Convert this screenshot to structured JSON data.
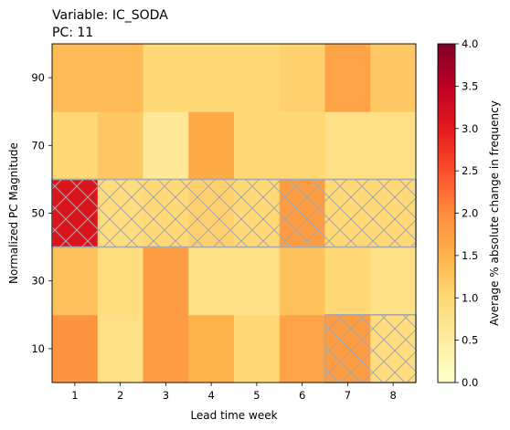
{
  "chart_data": {
    "type": "heatmap",
    "title_lines": [
      "Variable: IC_SODA",
      "PC: 11"
    ],
    "xlabel": "Lead time week",
    "ylabel": "Normalized PC Magnitude",
    "x_categories": [
      "1",
      "2",
      "3",
      "4",
      "5",
      "6",
      "7",
      "8"
    ],
    "y_categories": [
      "10",
      "30",
      "50",
      "70",
      "90"
    ],
    "colorbar": {
      "label": "Average % absolute change in frequency",
      "min": 0.0,
      "max": 4.0,
      "ticks": [
        "0.0",
        "0.5",
        "1.0",
        "1.5",
        "2.0",
        "2.5",
        "3.0",
        "3.5",
        "4.0"
      ],
      "colormap": "YlOrRd"
    },
    "values": [
      [
        1.9,
        0.8,
        1.8,
        1.5,
        1.0,
        1.7,
        1.8,
        0.9
      ],
      [
        1.3,
        0.9,
        1.8,
        0.8,
        0.8,
        1.3,
        1.0,
        0.8
      ],
      [
        3.1,
        0.9,
        1.0,
        1.1,
        1.0,
        1.8,
        1.0,
        1.0
      ],
      [
        1.0,
        1.2,
        0.6,
        1.6,
        1.0,
        1.0,
        0.8,
        0.8
      ],
      [
        1.4,
        1.4,
        1.0,
        1.0,
        1.0,
        1.1,
        1.7,
        1.2
      ]
    ],
    "hatched_cells": [
      {
        "x": "1",
        "y": "50"
      },
      {
        "x": "2",
        "y": "50"
      },
      {
        "x": "3",
        "y": "50"
      },
      {
        "x": "4",
        "y": "50"
      },
      {
        "x": "5",
        "y": "50"
      },
      {
        "x": "6",
        "y": "50"
      },
      {
        "x": "7",
        "y": "50"
      },
      {
        "x": "8",
        "y": "50"
      },
      {
        "x": "7",
        "y": "10"
      },
      {
        "x": "8",
        "y": "10"
      }
    ],
    "hatch_color": "#a9a9a9"
  }
}
